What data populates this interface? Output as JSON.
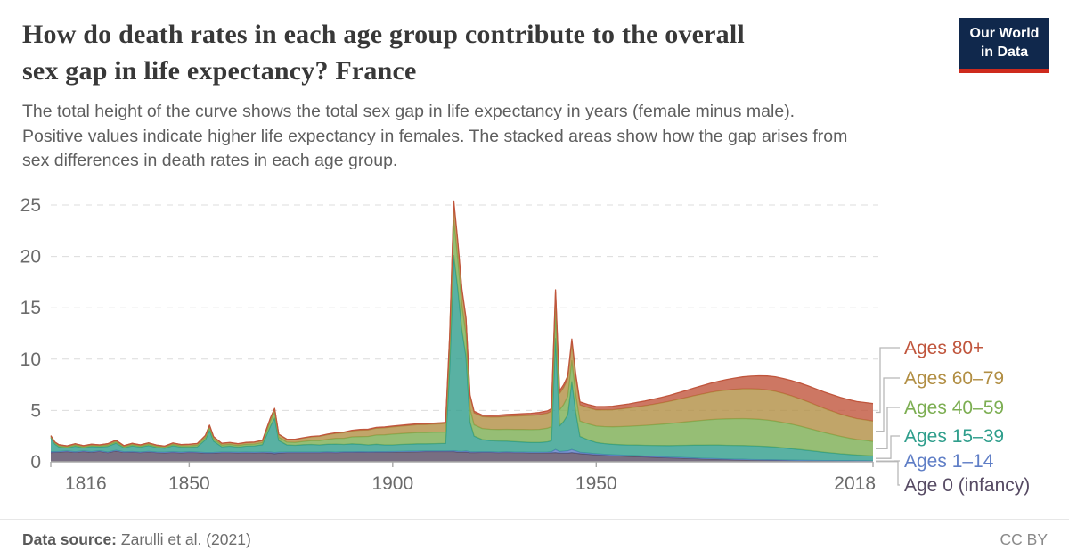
{
  "header": {
    "title": "How do death rates in each age group contribute to the overall\nsex gap in life expectancy? France",
    "logo_text": "Our World\nin Data",
    "logo_bg": "#10284C",
    "logo_underline": "#CE2A1D"
  },
  "subtitle": "The total height of the curve shows the total sex gap in life expectancy in years (female minus male).\nPositive values indicate higher life expectancy in females. The stacked areas show how the gap arises from\nsex differences in death rates in each age group.",
  "footer": {
    "source_label": "Data source:",
    "source_text": "Zarulli et al. (2021)",
    "license": "CC BY"
  },
  "chart_data": {
    "type": "area",
    "title": "Sex gap in life expectancy by age-group contribution, France",
    "xlabel": "",
    "ylabel": "",
    "xlim": [
      1816,
      2018
    ],
    "ylim": [
      0,
      25
    ],
    "xticks": [
      1816,
      1850,
      1900,
      1950,
      2018
    ],
    "yticks": [
      0,
      5,
      10,
      15,
      20,
      25
    ],
    "grid": "dashed-horizontal",
    "legend_position": "right",
    "axis_text_color": "#6b6b6b",
    "grid_color": "#dcdcdc",
    "axis_line_color": "#a8a8a8",
    "connector_color": "#b8b8b8",
    "legend": [
      {
        "label": "Ages 80+",
        "color": "#C0553C"
      },
      {
        "label": "Ages 60–79",
        "color": "#B18E43"
      },
      {
        "label": "Ages 40–59",
        "color": "#7CAE52"
      },
      {
        "label": "Ages 15–39",
        "color": "#2F9E8C"
      },
      {
        "label": "Ages 1–14",
        "color": "#5F7EC6"
      },
      {
        "label": "Age 0 (infancy)",
        "color": "#564A63"
      }
    ],
    "stack_order_bottom_to_top": [
      "Age 0 (infancy)",
      "Ages 1–14",
      "Ages 15–39",
      "Ages 40–59",
      "Ages 60–79",
      "Ages 80+"
    ],
    "series_colors_bottom_to_top": [
      "#564A63",
      "#5F7EC6",
      "#2F9E8C",
      "#7CAE52",
      "#B18E43",
      "#C0553C"
    ],
    "points_format": [
      "year",
      "age0",
      "ages1_14",
      "ages15_39",
      "ages40_59",
      "ages60_79",
      "ages80plus"
    ],
    "points": [
      [
        1816,
        0.9,
        0.08,
        1.35,
        0.12,
        0.1,
        0.0
      ],
      [
        1817,
        0.92,
        0.06,
        0.75,
        0.1,
        0.1,
        0.0
      ],
      [
        1818,
        0.95,
        0.05,
        0.45,
        0.1,
        0.12,
        0.0
      ],
      [
        1820,
        1.0,
        0.05,
        0.3,
        0.1,
        0.1,
        0.0
      ],
      [
        1822,
        0.92,
        0.05,
        0.55,
        0.1,
        0.14,
        0.0
      ],
      [
        1824,
        1.0,
        0.05,
        0.32,
        0.1,
        0.1,
        0.0
      ],
      [
        1826,
        0.94,
        0.05,
        0.5,
        0.1,
        0.12,
        0.0
      ],
      [
        1828,
        1.02,
        0.05,
        0.38,
        0.1,
        0.1,
        0.0
      ],
      [
        1830,
        0.9,
        0.05,
        0.55,
        0.12,
        0.14,
        0.0
      ],
      [
        1832,
        1.05,
        0.06,
        0.7,
        0.14,
        0.15,
        0.0
      ],
      [
        1834,
        0.92,
        0.05,
        0.4,
        0.1,
        0.1,
        0.0
      ],
      [
        1836,
        0.95,
        0.05,
        0.55,
        0.12,
        0.13,
        0.0
      ],
      [
        1838,
        0.9,
        0.05,
        0.48,
        0.1,
        0.12,
        0.0
      ],
      [
        1840,
        0.96,
        0.05,
        0.58,
        0.12,
        0.14,
        0.0
      ],
      [
        1842,
        0.9,
        0.05,
        0.45,
        0.1,
        0.12,
        0.0
      ],
      [
        1844,
        0.88,
        0.05,
        0.4,
        0.1,
        0.1,
        0.0
      ],
      [
        1846,
        0.92,
        0.05,
        0.6,
        0.12,
        0.14,
        0.0
      ],
      [
        1848,
        0.88,
        0.05,
        0.5,
        0.12,
        0.13,
        0.0
      ],
      [
        1850,
        0.92,
        0.05,
        0.45,
        0.13,
        0.15,
        0.01
      ],
      [
        1852,
        0.9,
        0.05,
        0.52,
        0.15,
        0.16,
        0.01
      ],
      [
        1854,
        0.85,
        0.05,
        1.25,
        0.22,
        0.2,
        0.01
      ],
      [
        1855,
        0.85,
        0.05,
        2.15,
        0.28,
        0.22,
        0.02
      ],
      [
        1856,
        0.86,
        0.05,
        1.1,
        0.22,
        0.2,
        0.02
      ],
      [
        1858,
        0.9,
        0.05,
        0.52,
        0.16,
        0.16,
        0.02
      ],
      [
        1860,
        0.9,
        0.05,
        0.58,
        0.16,
        0.17,
        0.02
      ],
      [
        1862,
        0.88,
        0.05,
        0.5,
        0.16,
        0.16,
        0.02
      ],
      [
        1864,
        0.9,
        0.05,
        0.58,
        0.17,
        0.17,
        0.02
      ],
      [
        1866,
        0.88,
        0.05,
        0.62,
        0.18,
        0.18,
        0.02
      ],
      [
        1868,
        0.9,
        0.05,
        0.72,
        0.2,
        0.2,
        0.02
      ],
      [
        1870,
        0.85,
        0.1,
        2.55,
        0.5,
        0.28,
        0.02
      ],
      [
        1871,
        0.8,
        0.1,
        3.35,
        0.6,
        0.32,
        0.03
      ],
      [
        1872,
        0.85,
        0.08,
        1.15,
        0.32,
        0.26,
        0.03
      ],
      [
        1874,
        0.9,
        0.05,
        0.7,
        0.27,
        0.26,
        0.03
      ],
      [
        1876,
        0.9,
        0.05,
        0.66,
        0.28,
        0.28,
        0.03
      ],
      [
        1878,
        0.9,
        0.05,
        0.72,
        0.32,
        0.32,
        0.03
      ],
      [
        1880,
        0.9,
        0.05,
        0.74,
        0.38,
        0.36,
        0.04
      ],
      [
        1882,
        0.9,
        0.05,
        0.7,
        0.42,
        0.42,
        0.04
      ],
      [
        1884,
        0.92,
        0.05,
        0.74,
        0.48,
        0.46,
        0.05
      ],
      [
        1886,
        0.9,
        0.05,
        0.78,
        0.55,
        0.5,
        0.05
      ],
      [
        1888,
        0.92,
        0.05,
        0.72,
        0.6,
        0.55,
        0.06
      ],
      [
        1890,
        0.92,
        0.05,
        0.78,
        0.68,
        0.58,
        0.06
      ],
      [
        1892,
        0.94,
        0.05,
        0.72,
        0.75,
        0.62,
        0.07
      ],
      [
        1894,
        0.92,
        0.05,
        0.68,
        0.82,
        0.64,
        0.07
      ],
      [
        1896,
        0.94,
        0.05,
        0.72,
        0.9,
        0.66,
        0.08
      ],
      [
        1898,
        0.94,
        0.05,
        0.66,
        0.98,
        0.68,
        0.08
      ],
      [
        1900,
        0.95,
        0.05,
        0.65,
        1.05,
        0.7,
        0.08
      ],
      [
        1902,
        0.96,
        0.05,
        0.68,
        1.06,
        0.72,
        0.09
      ],
      [
        1904,
        0.97,
        0.05,
        0.7,
        1.08,
        0.74,
        0.09
      ],
      [
        1906,
        0.98,
        0.05,
        0.72,
        1.1,
        0.76,
        0.09
      ],
      [
        1908,
        1.0,
        0.05,
        0.7,
        1.1,
        0.78,
        0.1
      ],
      [
        1910,
        1.0,
        0.05,
        0.72,
        1.1,
        0.8,
        0.1
      ],
      [
        1912,
        1.0,
        0.05,
        0.74,
        1.1,
        0.82,
        0.1
      ],
      [
        1913,
        1.0,
        0.05,
        0.75,
        1.1,
        0.84,
        0.1
      ],
      [
        1914,
        1.0,
        0.06,
        8.0,
        2.0,
        1.1,
        0.14
      ],
      [
        1915,
        1.0,
        0.08,
        19.0,
        3.4,
        1.7,
        0.22
      ],
      [
        1916,
        0.95,
        0.07,
        15.8,
        2.9,
        1.55,
        0.2
      ],
      [
        1917,
        0.95,
        0.06,
        11.8,
        2.4,
        1.45,
        0.18
      ],
      [
        1918,
        0.95,
        0.1,
        9.2,
        2.2,
        1.4,
        0.18
      ],
      [
        1919,
        0.9,
        0.07,
        2.9,
        1.3,
        1.2,
        0.15
      ],
      [
        1920,
        0.9,
        0.06,
        1.55,
        1.1,
        1.15,
        0.15
      ],
      [
        1922,
        0.92,
        0.05,
        1.2,
        1.08,
        1.15,
        0.15
      ],
      [
        1924,
        0.92,
        0.05,
        1.1,
        1.1,
        1.18,
        0.16
      ],
      [
        1926,
        0.9,
        0.05,
        1.08,
        1.12,
        1.22,
        0.17
      ],
      [
        1928,
        0.92,
        0.05,
        1.05,
        1.15,
        1.26,
        0.18
      ],
      [
        1930,
        0.9,
        0.05,
        1.02,
        1.18,
        1.3,
        0.19
      ],
      [
        1932,
        0.9,
        0.05,
        0.98,
        1.22,
        1.34,
        0.2
      ],
      [
        1934,
        0.88,
        0.05,
        0.95,
        1.25,
        1.38,
        0.21
      ],
      [
        1936,
        0.88,
        0.05,
        0.95,
        1.28,
        1.42,
        0.22
      ],
      [
        1938,
        0.88,
        0.07,
        1.0,
        1.32,
        1.46,
        0.23
      ],
      [
        1939,
        0.88,
        0.09,
        1.1,
        1.36,
        1.5,
        0.24
      ],
      [
        1940,
        0.9,
        0.3,
        10.8,
        2.6,
        1.85,
        0.3
      ],
      [
        1941,
        0.85,
        0.15,
        2.5,
        1.55,
        1.6,
        0.27
      ],
      [
        1942,
        0.85,
        0.18,
        2.9,
        1.65,
        1.65,
        0.28
      ],
      [
        1943,
        0.85,
        0.22,
        3.5,
        1.8,
        1.7,
        0.29
      ],
      [
        1944,
        0.9,
        0.3,
        6.6,
        2.05,
        1.8,
        0.3
      ],
      [
        1945,
        0.85,
        0.22,
        3.7,
        1.75,
        1.7,
        0.28
      ],
      [
        1946,
        0.8,
        0.12,
        1.55,
        1.5,
        1.58,
        0.28
      ],
      [
        1948,
        0.74,
        0.11,
        1.3,
        1.55,
        1.58,
        0.3
      ],
      [
        1950,
        0.68,
        0.1,
        1.1,
        1.6,
        1.58,
        0.32
      ],
      [
        1952,
        0.64,
        0.09,
        1.05,
        1.65,
        1.62,
        0.33
      ],
      [
        1954,
        0.6,
        0.09,
        1.02,
        1.7,
        1.66,
        0.35
      ],
      [
        1956,
        0.57,
        0.08,
        1.02,
        1.76,
        1.72,
        0.37
      ],
      [
        1958,
        0.54,
        0.08,
        1.02,
        1.82,
        1.78,
        0.39
      ],
      [
        1960,
        0.51,
        0.08,
        1.04,
        1.88,
        1.85,
        0.42
      ],
      [
        1962,
        0.48,
        0.07,
        1.06,
        1.94,
        1.92,
        0.45
      ],
      [
        1964,
        0.45,
        0.07,
        1.08,
        2.0,
        2.0,
        0.49
      ],
      [
        1966,
        0.42,
        0.07,
        1.1,
        2.07,
        2.08,
        0.53
      ],
      [
        1968,
        0.39,
        0.06,
        1.13,
        2.14,
        2.17,
        0.58
      ],
      [
        1970,
        0.37,
        0.06,
        1.17,
        2.21,
        2.26,
        0.63
      ],
      [
        1972,
        0.34,
        0.06,
        1.21,
        2.28,
        2.36,
        0.69
      ],
      [
        1974,
        0.32,
        0.05,
        1.25,
        2.35,
        2.46,
        0.75
      ],
      [
        1976,
        0.29,
        0.05,
        1.28,
        2.42,
        2.56,
        0.81
      ],
      [
        1978,
        0.27,
        0.05,
        1.31,
        2.48,
        2.65,
        0.88
      ],
      [
        1980,
        0.25,
        0.05,
        1.33,
        2.53,
        2.73,
        0.95
      ],
      [
        1982,
        0.23,
        0.04,
        1.34,
        2.57,
        2.8,
        1.02
      ],
      [
        1984,
        0.21,
        0.04,
        1.35,
        2.6,
        2.86,
        1.09
      ],
      [
        1986,
        0.2,
        0.04,
        1.35,
        2.62,
        2.9,
        1.16
      ],
      [
        1988,
        0.18,
        0.04,
        1.34,
        2.62,
        2.93,
        1.23
      ],
      [
        1990,
        0.17,
        0.04,
        1.32,
        2.61,
        2.94,
        1.3
      ],
      [
        1992,
        0.16,
        0.04,
        1.29,
        2.58,
        2.93,
        1.36
      ],
      [
        1994,
        0.15,
        0.04,
        1.25,
        2.53,
        2.9,
        1.41
      ],
      [
        1996,
        0.14,
        0.03,
        1.19,
        2.46,
        2.84,
        1.45
      ],
      [
        1998,
        0.13,
        0.03,
        1.12,
        2.38,
        2.76,
        1.49
      ],
      [
        2000,
        0.12,
        0.03,
        1.05,
        2.28,
        2.67,
        1.52
      ],
      [
        2002,
        0.11,
        0.03,
        0.97,
        2.17,
        2.57,
        1.55
      ],
      [
        2004,
        0.1,
        0.03,
        0.89,
        2.05,
        2.46,
        1.57
      ],
      [
        2006,
        0.09,
        0.03,
        0.81,
        1.93,
        2.35,
        1.59
      ],
      [
        2008,
        0.09,
        0.03,
        0.74,
        1.81,
        2.25,
        1.61
      ],
      [
        2010,
        0.08,
        0.03,
        0.67,
        1.7,
        2.16,
        1.63
      ],
      [
        2012,
        0.08,
        0.03,
        0.61,
        1.6,
        2.09,
        1.64
      ],
      [
        2014,
        0.07,
        0.03,
        0.56,
        1.52,
        2.03,
        1.66
      ],
      [
        2016,
        0.07,
        0.03,
        0.52,
        1.47,
        2.0,
        1.68
      ],
      [
        2018,
        0.06,
        0.03,
        0.48,
        1.42,
        1.98,
        1.7
      ]
    ]
  }
}
